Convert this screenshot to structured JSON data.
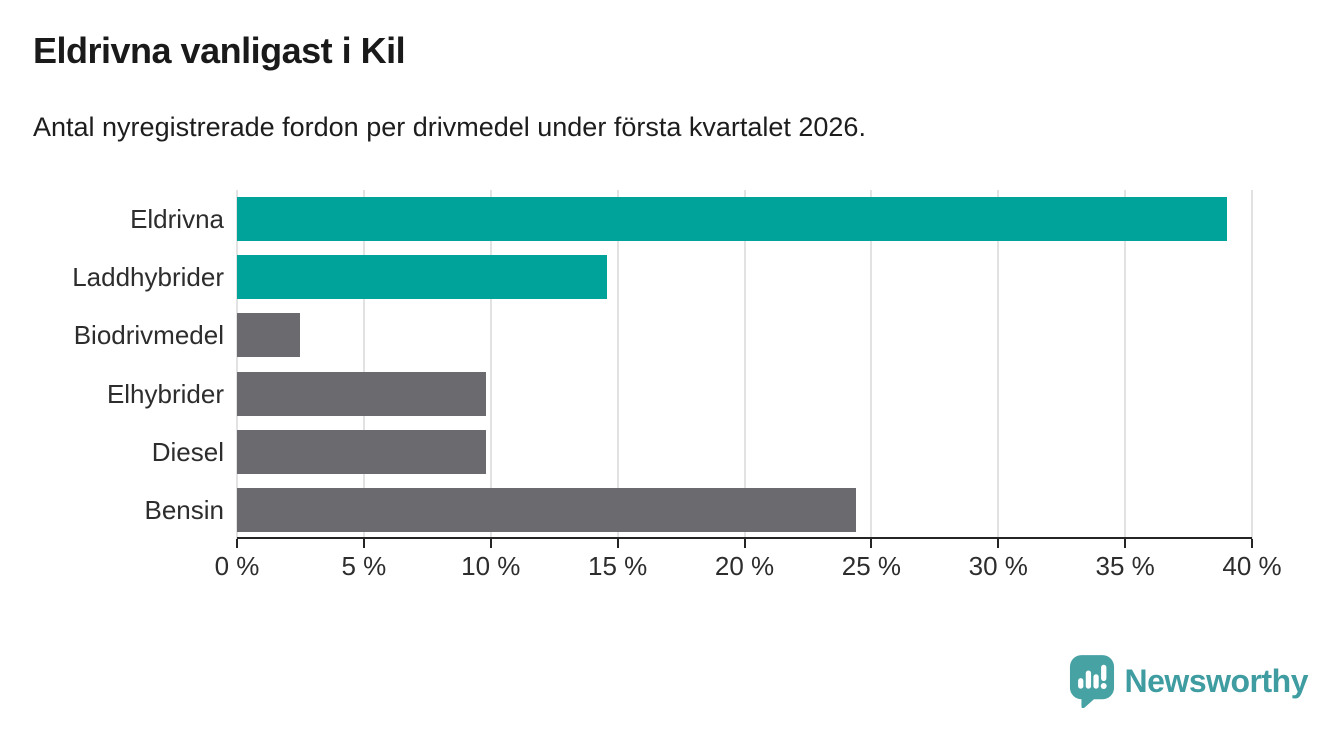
{
  "header": {
    "title": "Eldrivna vanligast i Kil",
    "subtitle": "Antal nyregistrerade fordon per drivmedel under första kvartalet 2026."
  },
  "chart_data": {
    "type": "bar",
    "orientation": "horizontal",
    "title": "Eldrivna vanligast i Kil",
    "subtitle": "Antal nyregistrerade fordon per drivmedel under första kvartalet 2026.",
    "categories": [
      "Eldrivna",
      "Laddhybrider",
      "Biodrivmedel",
      "Elhybrider",
      "Diesel",
      "Bensin"
    ],
    "values": [
      39.0,
      14.6,
      2.5,
      9.8,
      9.8,
      24.4
    ],
    "unit": "%",
    "bar_colors": [
      "#00a39a",
      "#00a39a",
      "#6b6b6f",
      "#6b6b6f",
      "#6b6b6f",
      "#6b6b6f"
    ],
    "xlabel": "",
    "ylabel": "",
    "xlim": [
      0,
      40
    ],
    "x_tick_step": 5,
    "x_tick_labels": [
      "0 %",
      "5 %",
      "10 %",
      "15 %",
      "20 %",
      "25 %",
      "30 %",
      "35 %",
      "40 %"
    ],
    "grid": "vertical-on",
    "legend": "none"
  },
  "colors": {
    "accent_teal": "#00a39a",
    "neutral_gray": "#6b6b6f",
    "gridline": "#e2e2e2",
    "axis": "#252525",
    "text_dark": "#1a1a1a",
    "logo_teal": "#3f9da1",
    "logo_icon_teal": "#47a2a4"
  },
  "footer": {
    "logo_text": "Newsworthy"
  }
}
